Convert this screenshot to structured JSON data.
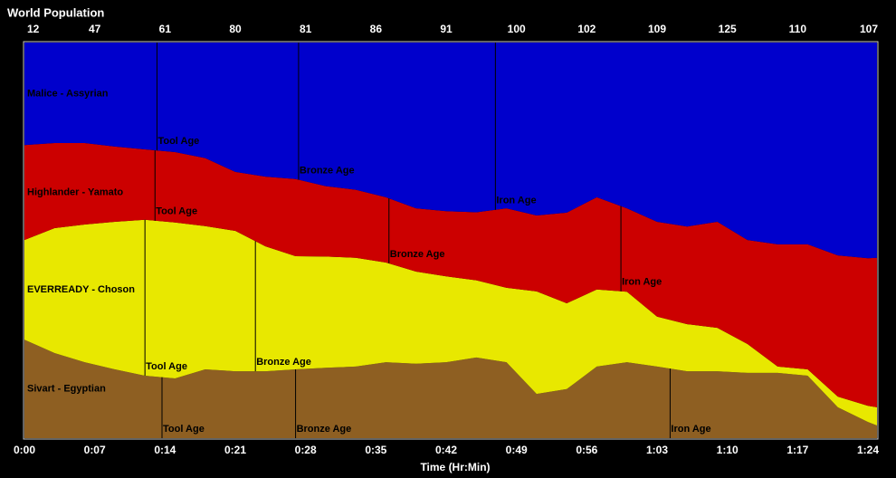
{
  "chart_data": {
    "type": "stacked-area",
    "title": "World Population",
    "x_label": "Time (Hr:Min)",
    "xlim": [
      0,
      84.9
    ],
    "ylim": [
      0,
      100
    ],
    "xticks": [
      {
        "value": 0,
        "label": "0:00"
      },
      {
        "value": 7,
        "label": "0:07"
      },
      {
        "value": 14,
        "label": "0:14"
      },
      {
        "value": 21,
        "label": "0:21"
      },
      {
        "value": 28,
        "label": "0:28"
      },
      {
        "value": 35,
        "label": "0:35"
      },
      {
        "value": 42,
        "label": "0:42"
      },
      {
        "value": 49,
        "label": "0:49"
      },
      {
        "value": 56,
        "label": "0:56"
      },
      {
        "value": 63,
        "label": "1:03"
      },
      {
        "value": 70,
        "label": "1:10"
      },
      {
        "value": 77,
        "label": "1:17"
      },
      {
        "value": 84,
        "label": "1:24"
      }
    ],
    "world_population": [
      12,
      47,
      61,
      80,
      81,
      86,
      91,
      100,
      102,
      109,
      125,
      110,
      107
    ],
    "x": [
      0,
      3,
      6,
      9,
      12,
      15,
      18,
      21,
      24,
      27,
      30,
      33,
      36,
      39,
      42,
      45,
      48,
      51,
      54,
      57,
      60,
      63,
      66,
      69,
      72,
      75,
      78,
      81,
      84,
      84.9
    ],
    "series": [
      {
        "name": "Sivart - Egyptian",
        "color": "#8e5f22",
        "values": [
          24.9,
          21.5,
          19.2,
          17.4,
          15.8,
          15.1,
          17.4,
          16.9,
          16.9,
          17.4,
          17.8,
          18.1,
          19.2,
          18.8,
          19.2,
          20.4,
          19.2,
          11.2,
          12.4,
          18.1,
          19.2,
          18.1,
          16.9,
          16.9,
          16.5,
          16.5,
          15.8,
          7.8,
          4.1,
          3.2
        ],
        "ages": [
          {
            "time": 13.7,
            "label": "Tool Age"
          },
          {
            "time": 27.0,
            "label": "Bronze Age"
          },
          {
            "time": 64.3,
            "label": "Iron Age"
          }
        ]
      },
      {
        "name": "EVERREADY - Choson",
        "color": "#e8e800",
        "values": [
          25.2,
          31.6,
          34.8,
          37.3,
          39.4,
          39.4,
          36.2,
          35.5,
          31.6,
          28.6,
          28.1,
          27.5,
          25.2,
          23.3,
          21.7,
          19.5,
          18.8,
          25.9,
          21.7,
          19.5,
          17.8,
          12.6,
          11.9,
          11.0,
          7.3,
          1.6,
          1.6,
          2.7,
          4.1,
          4.6
        ],
        "ages": [
          {
            "time": 12.0,
            "label": "Tool Age"
          },
          {
            "time": 23.0,
            "label": "Bronze Age"
          }
        ]
      },
      {
        "name": "Highlander - Yamato",
        "color": "#cc0000",
        "values": [
          24.0,
          21.5,
          20.6,
          19.0,
          17.8,
          17.8,
          17.2,
          14.9,
          17.6,
          19.5,
          17.8,
          17.2,
          16.5,
          16.0,
          16.5,
          17.2,
          20.1,
          19.2,
          22.9,
          23.3,
          21.1,
          24.0,
          24.7,
          26.8,
          26.3,
          30.9,
          31.6,
          35.7,
          37.3,
          37.8
        ],
        "ages": [
          {
            "time": 13.0,
            "label": "Tool Age"
          },
          {
            "time": 36.3,
            "label": "Bronze Age"
          },
          {
            "time": 59.4,
            "label": "Iron Age"
          }
        ]
      },
      {
        "name": "Malice - Assyrian",
        "color": "#0000cc",
        "values": [
          25.9,
          25.4,
          25.4,
          26.3,
          27.0,
          27.7,
          29.2,
          32.7,
          33.9,
          34.5,
          36.3,
          37.2,
          39.1,
          41.9,
          42.6,
          42.9,
          41.9,
          43.7,
          43.0,
          39.1,
          41.9,
          45.3,
          46.5,
          45.3,
          49.9,
          51.0,
          51.0,
          53.8,
          54.5,
          54.4
        ],
        "ages": [
          {
            "time": 13.2,
            "label": "Tool Age"
          },
          {
            "time": 27.3,
            "label": "Bronze Age"
          },
          {
            "time": 46.9,
            "label": "Iron Age"
          }
        ]
      }
    ]
  }
}
